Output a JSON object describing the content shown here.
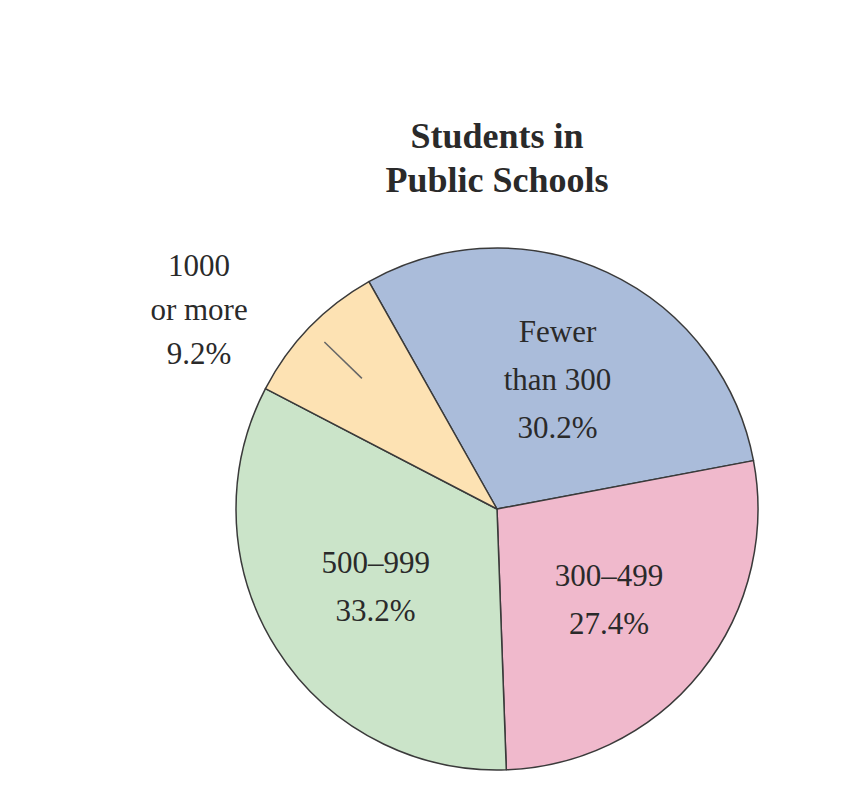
{
  "chart_data": {
    "type": "pie",
    "title": "Students in Public Schools",
    "categories": [
      "Fewer than 300",
      "300–499",
      "500–999",
      "1000 or more"
    ],
    "values": [
      30.2,
      27.4,
      33.2,
      9.2
    ],
    "value_labels": [
      "30.2%",
      "27.4%",
      "33.2%",
      "9.2%"
    ],
    "colors": [
      "#aabcda",
      "#f0b9cc",
      "#cbe4c9",
      "#fde2b3"
    ],
    "data_labels": true
  }
}
